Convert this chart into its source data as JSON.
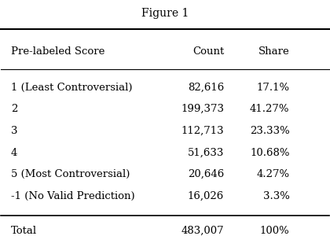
{
  "title": "Figure 1",
  "col_headers": [
    "Pre-labeled Score",
    "Count",
    "Share"
  ],
  "rows": [
    [
      "1 (Least Controversial)",
      "82,616",
      "17.1%"
    ],
    [
      "2",
      "199,373",
      "41.27%"
    ],
    [
      "3",
      "112,713",
      "23.33%"
    ],
    [
      "4",
      "51,633",
      "10.68%"
    ],
    [
      "5 (Most Controversial)",
      "20,646",
      "4.27%"
    ],
    [
      "-1 (No Valid Prediction)",
      "16,026",
      "3.3%"
    ]
  ],
  "total_row": [
    "Total",
    "483,007",
    "100%"
  ],
  "background_color": "#ffffff",
  "text_color": "#000000",
  "font_size": 9.5,
  "header_font_size": 9.5,
  "title_font_size": 10
}
